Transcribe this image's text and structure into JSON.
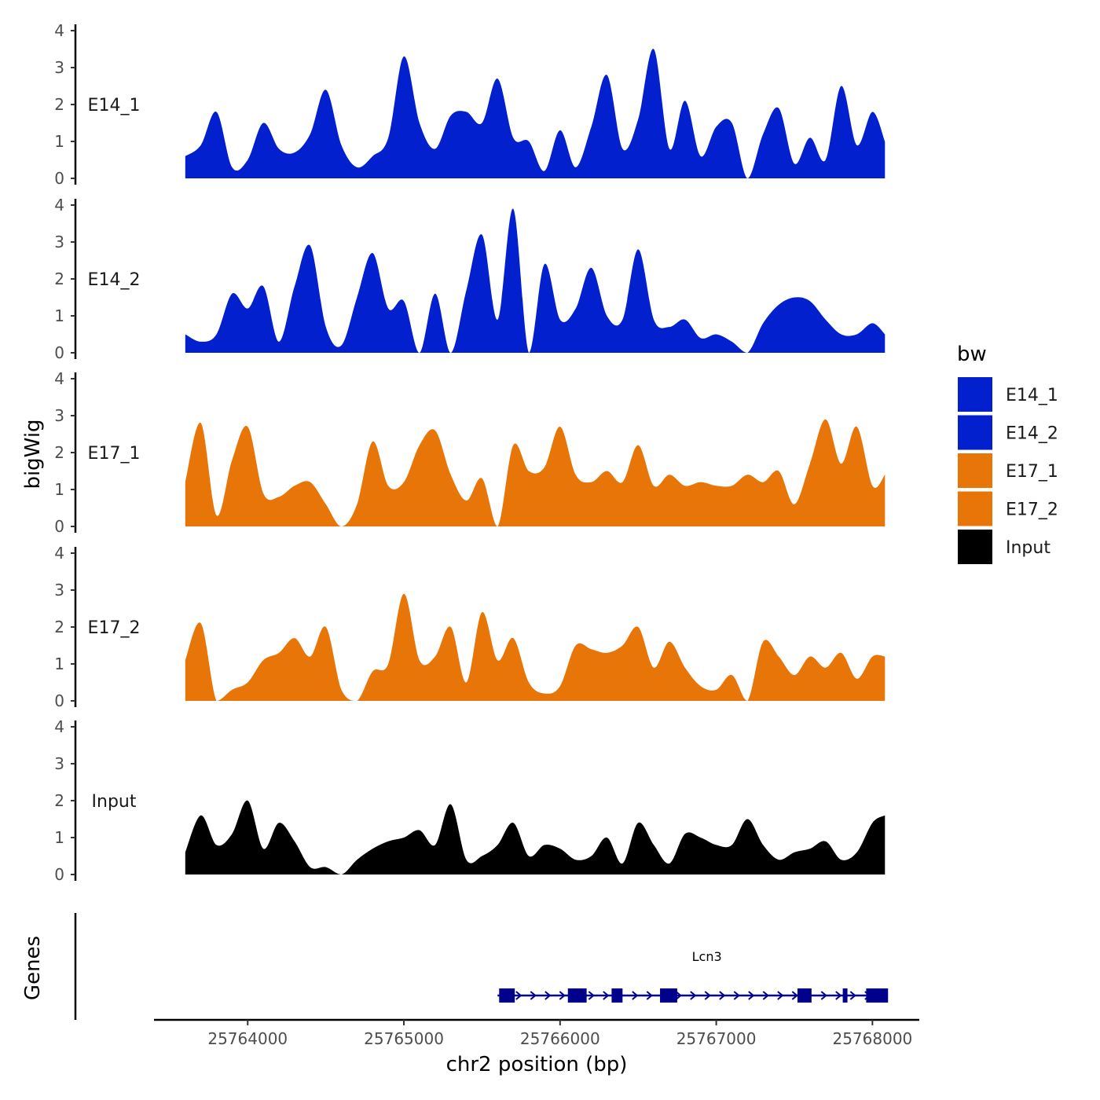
{
  "chart_data": {
    "type": "area",
    "chromosome": "chr2",
    "xlabel": "chr2 position (bp)",
    "ylabel": "bigWig",
    "gene_panel_label": "Genes",
    "xlim": [
      25763400,
      25768300
    ],
    "x_ticks": [
      25764000,
      25765000,
      25766000,
      25767000,
      25768000
    ],
    "x_tick_labels": [
      "25764000",
      "25765000",
      "25766000",
      "25767000",
      "25768000"
    ],
    "ylim": [
      0,
      4
    ],
    "y_ticks": [
      0,
      1,
      2,
      3,
      4
    ],
    "y_tick_labels": [
      "0",
      "1",
      "2",
      "3",
      "4"
    ],
    "track_range": [
      25763600,
      25768080
    ],
    "tracks": [
      {
        "name": "E14_1",
        "color": "#0320CE",
        "x": [
          25763600,
          25763700,
          25763800,
          25763900,
          25764000,
          25764100,
          25764200,
          25764300,
          25764400,
          25764500,
          25764600,
          25764700,
          25764800,
          25764900,
          25765000,
          25765100,
          25765200,
          25765300,
          25765400,
          25765500,
          25765600,
          25765700,
          25765800,
          25765900,
          25766000,
          25766100,
          25766200,
          25766300,
          25766400,
          25766500,
          25766600,
          25766700,
          25766800,
          25766900,
          25767000,
          25767100,
          25767200,
          25767300,
          25767400,
          25767500,
          25767600,
          25767700,
          25767800,
          25767900,
          25768000,
          25768080
        ],
        "values": [
          0.6,
          0.9,
          1.8,
          0.3,
          0.5,
          1.5,
          0.8,
          0.7,
          1.2,
          2.4,
          0.9,
          0.3,
          0.6,
          1.1,
          3.3,
          1.5,
          0.8,
          1.7,
          1.8,
          1.5,
          2.7,
          1.1,
          1.0,
          0.2,
          1.3,
          0.3,
          1.4,
          2.8,
          0.8,
          1.6,
          3.5,
          0.8,
          2.1,
          0.6,
          1.4,
          1.5,
          0.0,
          1.2,
          1.9,
          0.4,
          1.1,
          0.5,
          2.5,
          0.9,
          1.8,
          1.0
        ]
      },
      {
        "name": "E14_2",
        "color": "#0320CE",
        "x": [
          25763600,
          25763700,
          25763800,
          25763900,
          25764000,
          25764100,
          25764200,
          25764300,
          25764400,
          25764500,
          25764600,
          25764700,
          25764800,
          25764900,
          25765000,
          25765100,
          25765200,
          25765300,
          25765400,
          25765500,
          25765600,
          25765700,
          25765800,
          25765900,
          25766000,
          25766100,
          25766200,
          25766300,
          25766400,
          25766500,
          25766600,
          25766700,
          25766800,
          25766900,
          25767000,
          25767100,
          25767200,
          25767300,
          25767400,
          25767500,
          25767600,
          25767700,
          25767800,
          25767900,
          25768000,
          25768080
        ],
        "values": [
          0.5,
          0.3,
          0.5,
          1.6,
          1.2,
          1.8,
          0.3,
          1.8,
          2.9,
          0.7,
          0.2,
          1.5,
          2.7,
          1.2,
          1.4,
          0.0,
          1.6,
          0.0,
          1.7,
          3.2,
          0.9,
          3.9,
          0.0,
          2.4,
          0.9,
          1.2,
          2.3,
          1.0,
          0.9,
          2.8,
          0.9,
          0.7,
          0.9,
          0.4,
          0.5,
          0.3,
          0.0,
          0.8,
          1.3,
          1.5,
          1.4,
          0.9,
          0.5,
          0.5,
          0.8,
          0.5
        ]
      },
      {
        "name": "E17_1",
        "color": "#E87507",
        "x": [
          25763600,
          25763700,
          25763800,
          25763900,
          25764000,
          25764100,
          25764200,
          25764300,
          25764400,
          25764500,
          25764600,
          25764700,
          25764800,
          25764900,
          25765000,
          25765100,
          25765200,
          25765300,
          25765400,
          25765500,
          25765600,
          25765700,
          25765800,
          25765900,
          25766000,
          25766100,
          25766200,
          25766300,
          25766400,
          25766500,
          25766600,
          25766700,
          25766800,
          25766900,
          25767000,
          25767100,
          25767200,
          25767300,
          25767400,
          25767500,
          25767600,
          25767700,
          25767800,
          25767900,
          25768000,
          25768080
        ],
        "values": [
          1.2,
          2.8,
          0.3,
          1.8,
          2.7,
          0.9,
          0.8,
          1.1,
          1.2,
          0.6,
          0.0,
          0.6,
          2.3,
          1.1,
          1.2,
          2.2,
          2.6,
          1.4,
          0.7,
          1.3,
          0.0,
          2.2,
          1.5,
          1.6,
          2.7,
          1.4,
          1.2,
          1.5,
          1.2,
          2.2,
          1.1,
          1.4,
          1.1,
          1.2,
          1.1,
          1.1,
          1.4,
          1.2,
          1.5,
          0.6,
          1.7,
          2.9,
          1.7,
          2.7,
          1.1,
          1.4
        ]
      },
      {
        "name": "E17_2",
        "color": "#E87507",
        "x": [
          25763600,
          25763700,
          25763800,
          25763900,
          25764000,
          25764100,
          25764200,
          25764300,
          25764400,
          25764500,
          25764600,
          25764700,
          25764800,
          25764900,
          25765000,
          25765100,
          25765200,
          25765300,
          25765400,
          25765500,
          25765600,
          25765700,
          25765800,
          25765900,
          25766000,
          25766100,
          25766200,
          25766300,
          25766400,
          25766500,
          25766600,
          25766700,
          25766800,
          25766900,
          25767000,
          25767100,
          25767200,
          25767300,
          25767400,
          25767500,
          25767600,
          25767700,
          25767800,
          25767900,
          25768000,
          25768080
        ],
        "values": [
          1.1,
          2.1,
          0.0,
          0.3,
          0.5,
          1.1,
          1.3,
          1.7,
          1.2,
          2.0,
          0.3,
          0.0,
          0.8,
          1.0,
          2.9,
          1.1,
          1.2,
          2.0,
          0.5,
          2.4,
          1.1,
          1.7,
          0.5,
          0.2,
          0.4,
          1.5,
          1.4,
          1.3,
          1.5,
          2.0,
          0.9,
          1.6,
          0.9,
          0.4,
          0.3,
          0.7,
          0.0,
          1.6,
          1.2,
          0.7,
          1.2,
          0.9,
          1.3,
          0.6,
          1.2,
          1.2
        ]
      },
      {
        "name": "Input",
        "color": "#000000",
        "x": [
          25763600,
          25763700,
          25763800,
          25763900,
          25764000,
          25764100,
          25764200,
          25764300,
          25764400,
          25764500,
          25764600,
          25764700,
          25764800,
          25764900,
          25765000,
          25765100,
          25765200,
          25765300,
          25765400,
          25765500,
          25765600,
          25765700,
          25765800,
          25765900,
          25766000,
          25766100,
          25766200,
          25766300,
          25766400,
          25766500,
          25766600,
          25766700,
          25766800,
          25766900,
          25767000,
          25767100,
          25767200,
          25767300,
          25767400,
          25767500,
          25767600,
          25767700,
          25767800,
          25767900,
          25768000,
          25768080
        ],
        "values": [
          0.6,
          1.6,
          0.8,
          1.1,
          2.0,
          0.7,
          1.4,
          0.9,
          0.2,
          0.2,
          0.0,
          0.4,
          0.7,
          0.9,
          1.0,
          1.2,
          0.8,
          1.9,
          0.4,
          0.5,
          0.8,
          1.4,
          0.5,
          0.8,
          0.7,
          0.4,
          0.5,
          1.0,
          0.3,
          1.4,
          0.8,
          0.3,
          1.1,
          1.0,
          0.8,
          0.8,
          1.5,
          0.8,
          0.4,
          0.6,
          0.7,
          0.9,
          0.4,
          0.6,
          1.4,
          1.6
        ]
      }
    ],
    "legend": {
      "title": "bw",
      "position": "right",
      "entries": [
        {
          "label": "E14_1",
          "color": "#0320CE"
        },
        {
          "label": "E14_2",
          "color": "#0320CE"
        },
        {
          "label": "E17_1",
          "color": "#E87507"
        },
        {
          "label": "E17_2",
          "color": "#E87507"
        },
        {
          "label": "Input",
          "color": "#000000"
        }
      ]
    },
    "gene": {
      "name": "Lcn3",
      "color": "#00008B",
      "strand": "+",
      "start": 25765600,
      "end": 25768080,
      "exons": [
        [
          25765610,
          25765710
        ],
        [
          25766050,
          25766170
        ],
        [
          25766330,
          25766400
        ],
        [
          25766640,
          25766750
        ],
        [
          25767520,
          25767610
        ],
        [
          25767810,
          25767840
        ],
        [
          25767960,
          25768100
        ]
      ]
    }
  }
}
